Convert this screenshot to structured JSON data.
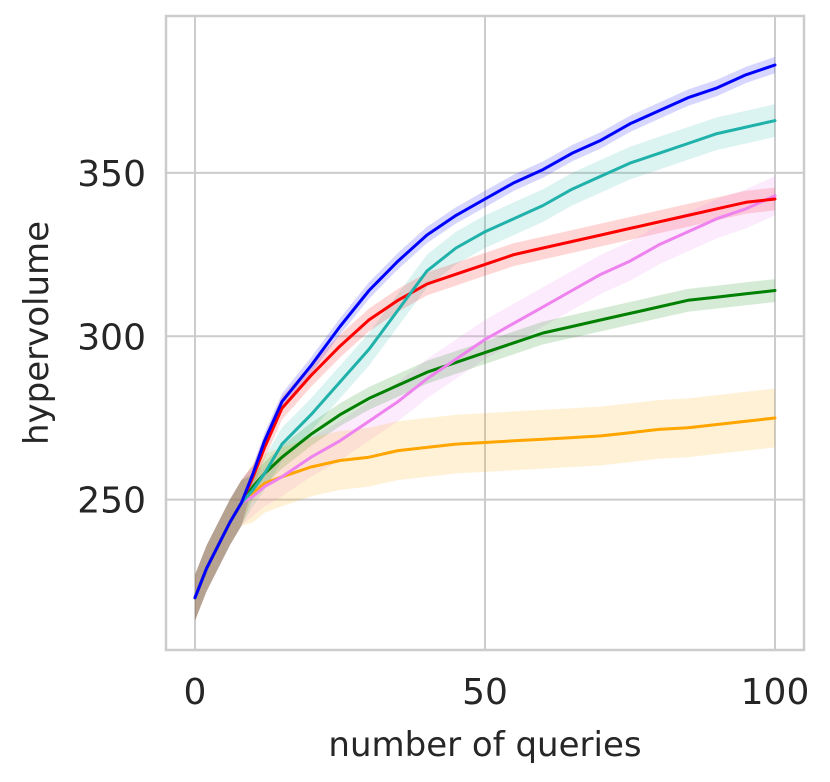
{
  "chart_data": {
    "type": "line",
    "title": "",
    "xlabel": "number of queries",
    "ylabel": "hypervolume",
    "xlim": [
      -5,
      105
    ],
    "ylim": [
      204,
      398
    ],
    "xticks": [
      0,
      50,
      100
    ],
    "yticks": [
      250,
      300,
      350
    ],
    "grid": true,
    "legend": "none",
    "x": [
      0,
      2,
      4,
      6,
      8,
      10,
      12,
      15,
      20,
      25,
      30,
      35,
      40,
      45,
      50,
      55,
      60,
      65,
      70,
      75,
      80,
      85,
      90,
      95,
      100
    ],
    "series": [
      {
        "name": "blue",
        "color": "#0000ff",
        "values": [
          220,
          229,
          236,
          243,
          249,
          258,
          268,
          280,
          291,
          303,
          314,
          323,
          331,
          337,
          342,
          347,
          351,
          356,
          360,
          365,
          369,
          373,
          376,
          380,
          383
        ],
        "band": 2.5
      },
      {
        "name": "teal",
        "color": "#20b2aa",
        "values": [
          220,
          229,
          236,
          243,
          249,
          253,
          258,
          267,
          276,
          286,
          296,
          308,
          320,
          327,
          332,
          336,
          340,
          345,
          349,
          353,
          356,
          359,
          362,
          364,
          366
        ],
        "band": 5
      },
      {
        "name": "red",
        "color": "#ff0000",
        "values": [
          220,
          229,
          236,
          243,
          249,
          257,
          266,
          278,
          288,
          297,
          305,
          311,
          316,
          319,
          322,
          325,
          327,
          329,
          331,
          333,
          335,
          337,
          339,
          341,
          342
        ],
        "band": 3.5
      },
      {
        "name": "violet",
        "color": "#ee82ee",
        "values": [
          220,
          229,
          236,
          243,
          249,
          251,
          254,
          257,
          263,
          268,
          274,
          280,
          287,
          293,
          299,
          304,
          309,
          314,
          319,
          323,
          328,
          332,
          336,
          339,
          343
        ],
        "band": 6
      },
      {
        "name": "green",
        "color": "#008000",
        "values": [
          220,
          229,
          236,
          243,
          249,
          254,
          258,
          263,
          270,
          276,
          281,
          285,
          289,
          292,
          295,
          298,
          301,
          303,
          305,
          307,
          309,
          311,
          312,
          313,
          314
        ],
        "band": 3.5
      },
      {
        "name": "orange",
        "color": "#ffa500",
        "values": [
          220,
          229,
          236,
          243,
          249,
          252,
          255,
          257,
          260,
          262,
          263,
          265,
          266,
          267,
          267.5,
          268,
          268.5,
          269,
          269.5,
          270.5,
          271.5,
          272,
          273,
          274,
          275
        ],
        "band": 9
      }
    ]
  }
}
